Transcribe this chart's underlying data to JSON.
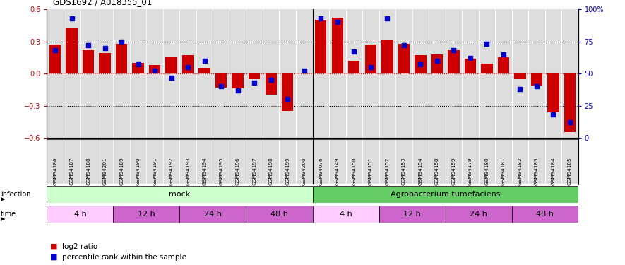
{
  "title": "GDS1692 / A018355_01",
  "samples": [
    "GSM94186",
    "GSM94187",
    "GSM94188",
    "GSM94201",
    "GSM94189",
    "GSM94190",
    "GSM94191",
    "GSM94192",
    "GSM94193",
    "GSM94194",
    "GSM94195",
    "GSM94196",
    "GSM94197",
    "GSM94198",
    "GSM94199",
    "GSM94200",
    "GSM94076",
    "GSM94149",
    "GSM94150",
    "GSM94151",
    "GSM94152",
    "GSM94153",
    "GSM94154",
    "GSM94158",
    "GSM94159",
    "GSM94179",
    "GSM94180",
    "GSM94181",
    "GSM94182",
    "GSM94183",
    "GSM94184",
    "GSM94185"
  ],
  "log2_ratio": [
    0.27,
    0.42,
    0.22,
    0.19,
    0.28,
    0.1,
    0.08,
    0.16,
    0.17,
    0.05,
    -0.13,
    -0.14,
    -0.05,
    -0.2,
    -0.35,
    0.0,
    0.5,
    0.52,
    0.12,
    0.27,
    0.32,
    0.28,
    0.17,
    0.18,
    0.22,
    0.14,
    0.09,
    0.15,
    -0.05,
    -0.11,
    -0.36,
    -0.55
  ],
  "percentile_rank": [
    68,
    93,
    72,
    70,
    75,
    57,
    52,
    47,
    55,
    60,
    40,
    37,
    43,
    45,
    30,
    52,
    93,
    90,
    67,
    55,
    93,
    72,
    57,
    60,
    68,
    62,
    73,
    65,
    38,
    40,
    18,
    12
  ],
  "bar_color": "#cc0000",
  "dot_color": "#0000cc",
  "ylim_left": [
    -0.6,
    0.6
  ],
  "ylim_right": [
    0,
    100
  ],
  "yticks_left": [
    -0.6,
    -0.3,
    0.0,
    0.3,
    0.6
  ],
  "yticks_right": [
    0,
    25,
    50,
    75,
    100
  ],
  "ytick_labels_right": [
    "0",
    "25",
    "50",
    "75",
    "100%"
  ],
  "hline_dotted_values": [
    0.3,
    -0.3
  ],
  "hline_red_value": 0.0,
  "infection_mock_label": "mock",
  "infection_agro_label": "Agrobacterium tumefaciens",
  "infection_mock_color": "#ccffcc",
  "infection_agro_color": "#66cc66",
  "time_labels": [
    "4 h",
    "12 h",
    "24 h",
    "48 h",
    "4 h",
    "12 h",
    "24 h",
    "48 h"
  ],
  "time_colors_light": "#ffccff",
  "time_colors_dark": "#cc66cc",
  "time_pattern": [
    0,
    1,
    1,
    1,
    0,
    1,
    1,
    1
  ],
  "time_sample_counts": [
    4,
    4,
    4,
    4,
    4,
    4,
    4,
    4
  ],
  "mock_split": 16,
  "total_samples": 32,
  "chart_bg": "#dddddd",
  "legend_log2_color": "#cc0000",
  "legend_pct_color": "#0000cc"
}
